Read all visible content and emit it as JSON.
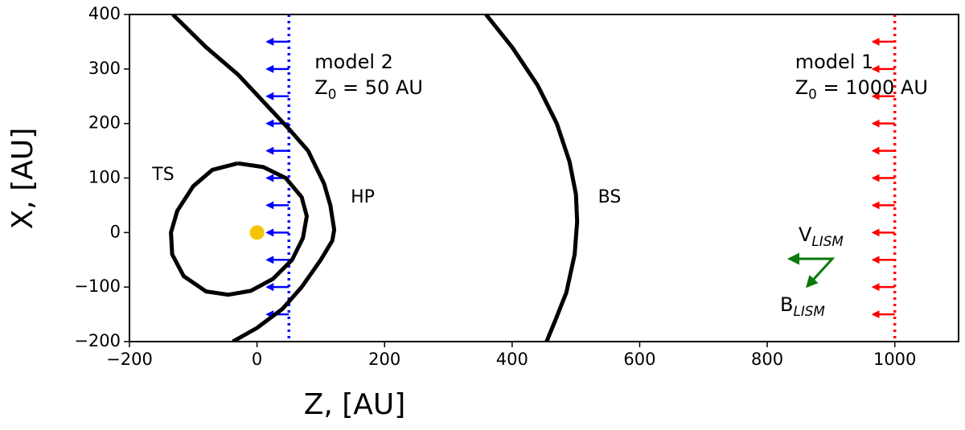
{
  "chart_data": {
    "type": "curves",
    "xlabel": "Z, [AU]",
    "ylabel": "X, [AU]",
    "xlim": [
      -200,
      1100
    ],
    "ylim": [
      -200,
      400
    ],
    "xticks": [
      {
        "value": -200,
        "label": "−200"
      },
      0,
      200,
      400,
      600,
      800,
      1000
    ],
    "yticks": [
      {
        "value": -200,
        "label": "−200"
      },
      {
        "value": -100,
        "label": "−100"
      },
      0,
      100,
      200,
      300,
      400
    ],
    "curves": [
      {
        "label": "TS",
        "color": "#000000",
        "x": [
          -30,
          10,
          45,
          70,
          78,
          72,
          55,
          25,
          -10,
          -45,
          -80,
          -115,
          -133,
          -135,
          -125,
          -100,
          -70,
          -30
        ],
        "y": [
          127,
          120,
          100,
          65,
          30,
          -10,
          -50,
          -85,
          -107,
          -114,
          -108,
          -80,
          -40,
          0,
          40,
          85,
          115,
          127
        ]
      },
      {
        "label": "HP",
        "color": "#000000",
        "x": [
          -132,
          -80,
          -30,
          10,
          50,
          80,
          105,
          115,
          121,
          118,
          100,
          70,
          40,
          0,
          -38
        ],
        "y": [
          400,
          340,
          290,
          240,
          190,
          150,
          90,
          50,
          5,
          -15,
          -50,
          -100,
          -140,
          -175,
          -200
        ]
      },
      {
        "label": "BS",
        "color": "#000000",
        "x": [
          359,
          400,
          440,
          470,
          490,
          500,
          502,
          498,
          485,
          468,
          454
        ],
        "y": [
          400,
          340,
          270,
          200,
          130,
          70,
          20,
          -40,
          -110,
          -160,
          -200
        ]
      }
    ],
    "sun": {
      "x": 0,
      "y": 0,
      "color": "#f5c400"
    },
    "boundaries": [
      {
        "x": 50,
        "color": "#0000ff",
        "arrow_y": [
          350,
          300,
          250,
          200,
          150,
          100,
          50,
          0,
          -50,
          -100,
          -150
        ],
        "annotation": [
          [
            {
              "text": "model 2"
            }
          ],
          [
            {
              "text": "Z"
            },
            {
              "sub": "0"
            },
            {
              "text": " = 50 AU"
            }
          ]
        ]
      },
      {
        "x": 1000,
        "color": "#ff0000",
        "arrow_y": [
          350,
          300,
          250,
          200,
          150,
          100,
          50,
          0,
          -50,
          -100,
          -150
        ],
        "annotation": [
          [
            {
              "text": "model 1"
            }
          ],
          [
            {
              "text": "Z"
            },
            {
              "sub": "0"
            },
            {
              "text": " = 1000 AU"
            }
          ]
        ]
      }
    ],
    "vectors": {
      "color": "#0a7a0a",
      "labels": [
        [
          {
            "text": "V"
          },
          {
            "sub": "LISM"
          }
        ],
        [
          {
            "text": "B"
          },
          {
            "sub": "LISM"
          }
        ]
      ]
    }
  }
}
